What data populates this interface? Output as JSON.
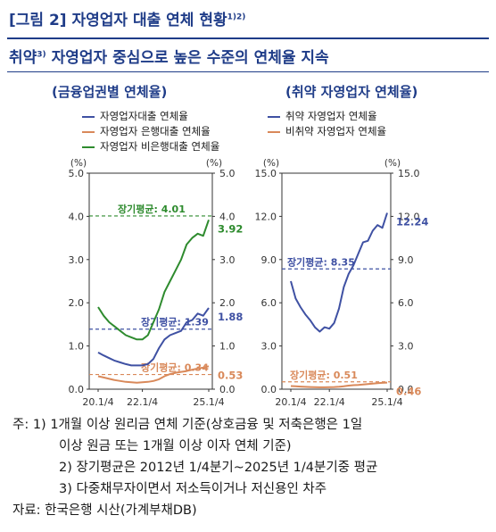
{
  "figure": {
    "title": "[그림 2] 자영업자 대출 연체 현황",
    "title_sup": "1)2)",
    "subtitle_a": "취약",
    "subtitle_sup": "3)",
    "subtitle_b": " 자영업자 중심으로 높은 수준의 연체율 지속"
  },
  "chart_data": [
    {
      "type": "line",
      "title": "(금융업권별 연체율)",
      "left_unit": "(%)",
      "right_unit": "(%)",
      "ylim_left": [
        0,
        5
      ],
      "ylim_right": [
        0,
        5
      ],
      "yticks": [
        "0.0",
        "1.0",
        "2.0",
        "3.0",
        "4.0",
        "5.0"
      ],
      "yticks_right": [
        "0.0",
        "1.0",
        "2.0",
        "3.0",
        "4.0",
        "5.0"
      ],
      "xticks": [
        "20.1/4",
        "22.1/4",
        "25.1/4"
      ],
      "x_quarters": [
        "20.1/4",
        "20.2/4",
        "20.3/4",
        "20.4/4",
        "21.1/4",
        "21.2/4",
        "21.3/4",
        "21.4/4",
        "22.1/4",
        "22.2/4",
        "22.3/4",
        "22.4/4",
        "23.1/4",
        "23.2/4",
        "23.3/4",
        "23.4/4",
        "24.1/4",
        "24.2/4",
        "24.3/4",
        "24.4/4",
        "25.1/4"
      ],
      "series": [
        {
          "name": "자영업자대출 연체율",
          "color": "#3f51a3",
          "values": [
            0.85,
            0.78,
            0.72,
            0.66,
            0.62,
            0.58,
            0.55,
            0.55,
            0.55,
            0.58,
            0.7,
            0.95,
            1.15,
            1.25,
            1.3,
            1.35,
            1.55,
            1.6,
            1.75,
            1.7,
            1.88
          ]
        },
        {
          "name": "자영업자 은행대출 연체율",
          "color": "#d9895a",
          "values": [
            0.3,
            0.27,
            0.24,
            0.21,
            0.19,
            0.17,
            0.16,
            0.15,
            0.16,
            0.17,
            0.19,
            0.23,
            0.3,
            0.35,
            0.38,
            0.4,
            0.42,
            0.45,
            0.48,
            0.5,
            0.53
          ]
        },
        {
          "name": "자영업자 비은행대출 연체율",
          "color": "#2e8b2e",
          "values": [
            1.9,
            1.7,
            1.55,
            1.45,
            1.35,
            1.25,
            1.2,
            1.15,
            1.15,
            1.25,
            1.55,
            1.85,
            2.25,
            2.5,
            2.75,
            3.0,
            3.35,
            3.5,
            3.6,
            3.55,
            3.92
          ]
        }
      ],
      "reference_lines": [
        {
          "label": "장기평균: 4.01",
          "value": 4.01,
          "color": "#2e8b2e"
        },
        {
          "label": "장기평균: 1.39",
          "value": 1.39,
          "color": "#3f51a3"
        },
        {
          "label": "장기평균: 0.34",
          "value": 0.34,
          "color": "#d9895a"
        }
      ],
      "end_labels": [
        {
          "text": "3.92",
          "value": 3.92,
          "color": "#2e8b2e"
        },
        {
          "text": "1.88",
          "value": 1.88,
          "color": "#3f51a3"
        },
        {
          "text": "0.53",
          "value": 0.53,
          "color": "#d9895a"
        }
      ]
    },
    {
      "type": "line",
      "title": "(취약 자영업자 연체율)",
      "left_unit": "(%)",
      "right_unit": "(%)",
      "ylim_left": [
        0,
        15
      ],
      "ylim_right": [
        0,
        15
      ],
      "yticks": [
        "0.0",
        "3.0",
        "6.0",
        "9.0",
        "12.0",
        "15.0"
      ],
      "yticks_right": [
        "0.0",
        "3.0",
        "6.0",
        "9.0",
        "12.0",
        "15.0"
      ],
      "xticks": [
        "20.1/4",
        "22.1/4",
        "25.1/4"
      ],
      "x_quarters": [
        "20.1/4",
        "20.2/4",
        "20.3/4",
        "20.4/4",
        "21.1/4",
        "21.2/4",
        "21.3/4",
        "21.4/4",
        "22.1/4",
        "22.2/4",
        "22.3/4",
        "22.4/4",
        "23.1/4",
        "23.2/4",
        "23.3/4",
        "23.4/4",
        "24.1/4",
        "24.2/4",
        "24.3/4",
        "24.4/4",
        "25.1/4"
      ],
      "series": [
        {
          "name": "취약 자영업자 연체율",
          "color": "#3f51a3",
          "values": [
            7.5,
            6.3,
            5.7,
            5.2,
            4.8,
            4.3,
            4.0,
            4.3,
            4.2,
            4.6,
            5.6,
            7.1,
            8.0,
            8.6,
            9.4,
            10.2,
            10.3,
            11.0,
            11.4,
            11.2,
            12.24
          ]
        },
        {
          "name": "비취약 자영업자 연체율",
          "color": "#d9895a",
          "values": [
            0.22,
            0.2,
            0.18,
            0.16,
            0.15,
            0.14,
            0.13,
            0.13,
            0.14,
            0.15,
            0.17,
            0.2,
            0.25,
            0.28,
            0.3,
            0.33,
            0.36,
            0.39,
            0.42,
            0.44,
            0.46
          ]
        }
      ],
      "reference_lines": [
        {
          "label": "장기평균: 8.35",
          "value": 8.35,
          "color": "#3f51a3"
        },
        {
          "label": "장기평균: 0.51",
          "value": 0.51,
          "color": "#d9895a"
        }
      ],
      "end_labels": [
        {
          "text": "12.24",
          "value": 12.24,
          "color": "#3f51a3"
        },
        {
          "text": "0.46",
          "value": 0.46,
          "color": "#d9895a"
        }
      ]
    }
  ],
  "notes": {
    "n1_label": "주: 1)",
    "n1_a": "1개월 이상 원리금 연체 기준(상호금융 및 저축은행은 1일",
    "n1_b": "이상 원금 또는 1개월 이상 이자 연체 기준)",
    "n2": "2) 장기평균은 2012년 1/4분기~2025년 1/4분기중 평균",
    "n3": "3) 다중채무자이면서 저소득이거나 저신용인 차주",
    "source": "자료: 한국은행 시산(가계부채DB)"
  }
}
